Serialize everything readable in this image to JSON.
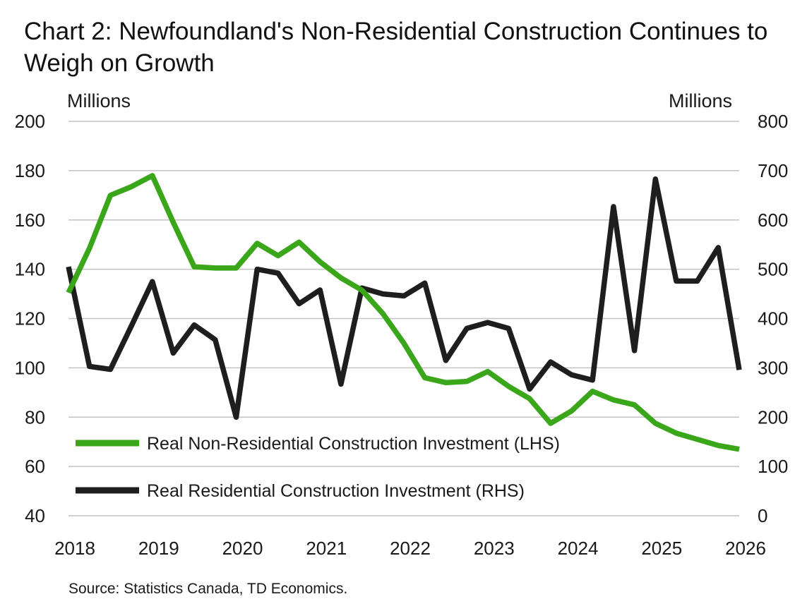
{
  "chart_data": {
    "type": "line",
    "title": "Chart 2: Newfoundland's Non-Residential Construction Continues to Weigh on Growth",
    "left_axis_label": "Millions",
    "right_axis_label": "Millions",
    "source": "Source: Statistics Canada, TD Economics.",
    "x_ticks": [
      "2018",
      "2019",
      "2020",
      "2021",
      "2022",
      "2023",
      "2024",
      "2025",
      "2026"
    ],
    "x_range": [
      2018,
      2026
    ],
    "y_left": {
      "range": [
        40,
        200
      ],
      "ticks": [
        "200",
        "180",
        "160",
        "140",
        "120",
        "100",
        "80",
        "60",
        "40"
      ]
    },
    "y_right": {
      "range": [
        0,
        800
      ],
      "ticks": [
        "800",
        "700",
        "600",
        "500",
        "400",
        "300",
        "200",
        "100",
        "0"
      ]
    },
    "grid": "horizontal",
    "legend_position": "bottom-left",
    "series": [
      {
        "name": "Real Non-Residential Construction Investment (LHS)",
        "axis": "left",
        "color": "#3aa61a",
        "points": [
          [
            2018.0,
            130.5
          ],
          [
            2018.25,
            148.5
          ],
          [
            2018.5,
            170.0
          ],
          [
            2018.75,
            173.5
          ],
          [
            2019.0,
            178.0
          ],
          [
            2019.25,
            159.0
          ],
          [
            2019.5,
            141.0
          ],
          [
            2019.75,
            140.5
          ],
          [
            2020.0,
            140.5
          ],
          [
            2020.25,
            150.5
          ],
          [
            2020.5,
            145.5
          ],
          [
            2020.75,
            151.0
          ],
          [
            2021.0,
            143.0
          ],
          [
            2021.25,
            136.5
          ],
          [
            2021.5,
            131.5
          ],
          [
            2021.75,
            122.0
          ],
          [
            2022.0,
            110.0
          ],
          [
            2022.25,
            96.0
          ],
          [
            2022.5,
            94.0
          ],
          [
            2022.75,
            94.5
          ],
          [
            2023.0,
            98.5
          ],
          [
            2023.25,
            92.5
          ],
          [
            2023.5,
            87.5
          ],
          [
            2023.75,
            77.5
          ],
          [
            2024.0,
            82.5
          ],
          [
            2024.25,
            90.5
          ],
          [
            2024.5,
            87.0
          ],
          [
            2024.75,
            85.0
          ],
          [
            2025.0,
            77.5
          ],
          [
            2025.25,
            73.5
          ],
          [
            2025.5,
            71.0
          ],
          [
            2025.75,
            68.5
          ],
          [
            2026.0,
            67.0
          ]
        ]
      },
      {
        "name": "Real Residential Construction Investment (RHS)",
        "axis": "right",
        "color": "#1e1e1e",
        "points": [
          [
            2018.0,
            505
          ],
          [
            2018.25,
            303
          ],
          [
            2018.5,
            297
          ],
          [
            2018.75,
            385
          ],
          [
            2019.0,
            475
          ],
          [
            2019.25,
            330
          ],
          [
            2019.5,
            387
          ],
          [
            2019.75,
            357
          ],
          [
            2020.0,
            200
          ],
          [
            2020.25,
            500
          ],
          [
            2020.5,
            492
          ],
          [
            2020.75,
            430
          ],
          [
            2021.0,
            458
          ],
          [
            2021.25,
            267
          ],
          [
            2021.5,
            462
          ],
          [
            2021.75,
            450
          ],
          [
            2022.0,
            446
          ],
          [
            2022.25,
            472
          ],
          [
            2022.5,
            315
          ],
          [
            2022.75,
            380
          ],
          [
            2023.0,
            392
          ],
          [
            2023.25,
            380
          ],
          [
            2023.5,
            257
          ],
          [
            2023.75,
            312
          ],
          [
            2024.0,
            286
          ],
          [
            2024.25,
            275
          ],
          [
            2024.5,
            627
          ],
          [
            2024.75,
            335
          ],
          [
            2025.0,
            683
          ],
          [
            2025.25,
            476
          ],
          [
            2025.5,
            476
          ],
          [
            2025.75,
            544
          ],
          [
            2026.0,
            296
          ]
        ]
      }
    ]
  }
}
